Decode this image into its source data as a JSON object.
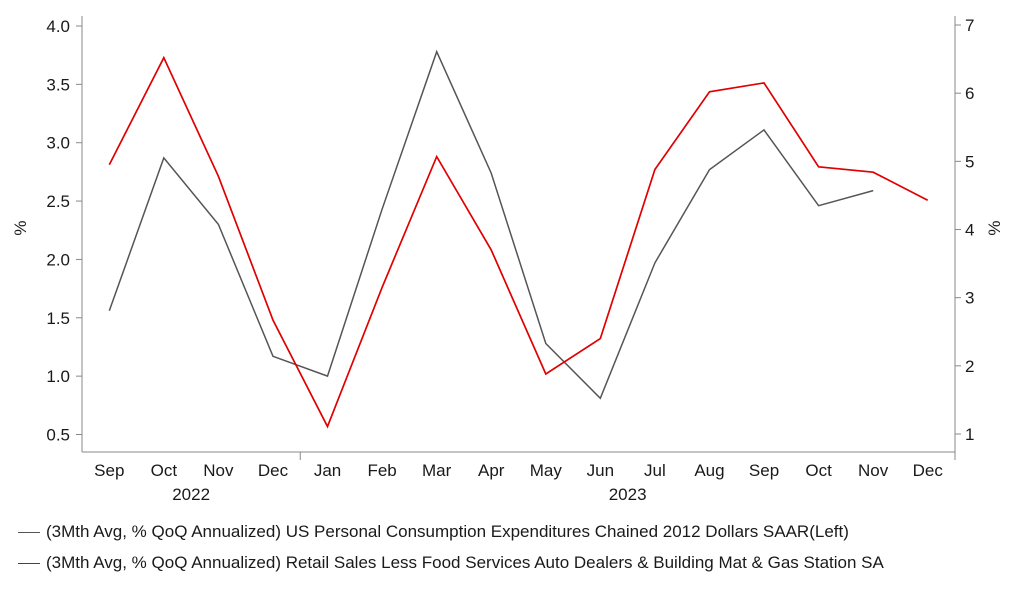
{
  "chart_data": {
    "type": "line",
    "categories": [
      "Sep",
      "Oct",
      "Nov",
      "Dec",
      "Jan",
      "Feb",
      "Mar",
      "Apr",
      "May",
      "Jun",
      "Jul",
      "Aug",
      "Sep",
      "Oct",
      "Nov",
      "Dec"
    ],
    "year_labels": [
      "2022",
      "2023"
    ],
    "ylabel_left": "%",
    "ylabel_right": "%",
    "ylim_left": [
      0.5,
      4.0
    ],
    "yticks_left": [
      "0.5",
      "1.0",
      "1.5",
      "2.0",
      "2.5",
      "3.0",
      "3.5",
      "4.0"
    ],
    "ylim_right": [
      1,
      7
    ],
    "yticks_right": [
      "1",
      "2",
      "3",
      "4",
      "5",
      "6",
      "7"
    ],
    "grid": false,
    "legend_position": "bottom",
    "series": [
      {
        "name": "(3Mth Avg, % QoQ Annualized) US Personal Consumption Expenditures Chained 2012 Dollars SAAR(Left)",
        "axis": "left",
        "color": "#555555",
        "values": [
          1.56,
          2.87,
          2.3,
          1.17,
          1.0,
          2.43,
          3.78,
          2.74,
          1.28,
          0.81,
          1.97,
          2.77,
          3.11,
          2.46,
          2.59,
          null
        ]
      },
      {
        "name": "(3Mth Avg, % QoQ Annualized) Retail Sales Less Food Services Auto Dealers & Building Mat & Gas Station SA",
        "axis": "right",
        "color": "#e00000",
        "values": [
          4.95,
          6.52,
          4.78,
          2.67,
          1.11,
          3.15,
          5.07,
          3.7,
          1.88,
          2.4,
          4.88,
          6.02,
          6.15,
          4.92,
          4.84,
          4.43
        ]
      }
    ]
  }
}
